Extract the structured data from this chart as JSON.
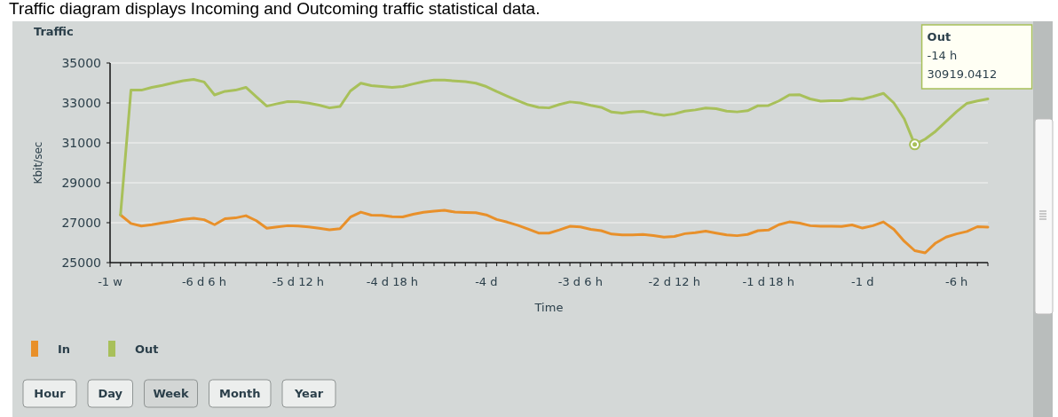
{
  "chart_data": {
    "type": "line",
    "title": "Traffic",
    "xlabel": "Time",
    "ylabel": "Kbit/sec",
    "annotations": [
      "Traffic diagram displays Incoming and Outcoming traffic statistical data.",
      "Out\n-14 h\n30919.0412",
      "Hour",
      "Day",
      "Week",
      "Month",
      "Year"
    ],
    "categories": [
      "-1 w",
      null,
      null,
      null,
      null,
      null,
      null,
      null,
      null,
      "-6 d 6 h",
      null,
      null,
      null,
      null,
      null,
      null,
      null,
      null,
      "-5 d 12 h",
      null,
      null,
      null,
      null,
      null,
      null,
      null,
      null,
      "-4 d 18 h",
      null,
      null,
      null,
      null,
      null,
      null,
      null,
      null,
      "-4 d",
      null,
      null,
      null,
      null,
      null,
      null,
      null,
      null,
      "-3 d 6 h",
      null,
      null,
      null,
      null,
      null,
      null,
      null,
      null,
      "-2 d 12 h",
      null,
      null,
      null,
      null,
      null,
      null,
      null,
      null,
      "-1 d 18 h",
      null,
      null,
      null,
      null,
      null,
      null,
      null,
      null,
      "-1 d",
      null,
      null,
      null,
      null,
      null,
      null,
      null,
      null,
      "-6 h",
      null,
      null,
      null
    ],
    "ylim": [
      25000,
      35000
    ],
    "yticks": [
      25000,
      27000,
      29000,
      31000,
      33000,
      35000
    ],
    "grid": "y",
    "legend": "bottom left",
    "marker": "none",
    "line_style": "solid",
    "series": [
      {
        "name": "In",
        "color": "#e8902a",
        "values": [
          null,
          27390,
          26960,
          26830,
          26900,
          26990,
          27070,
          27170,
          27220,
          27150,
          26900,
          27200,
          27240,
          27350,
          27100,
          26720,
          26790,
          26850,
          26830,
          26790,
          26720,
          26640,
          26700,
          27280,
          27530,
          27380,
          27370,
          27300,
          27290,
          27420,
          27520,
          27580,
          27620,
          27530,
          27510,
          27500,
          27390,
          27160,
          27030,
          26870,
          26680,
          26480,
          26480,
          26640,
          26820,
          26790,
          26670,
          26600,
          26430,
          26390,
          26390,
          26410,
          26360,
          26280,
          26310,
          26450,
          26500,
          26580,
          26480,
          26390,
          26350,
          26410,
          26600,
          26630,
          26900,
          27040,
          26980,
          26850,
          26820,
          26820,
          26810,
          26890,
          26730,
          26850,
          27040,
          26670,
          26070,
          25600,
          25490,
          25980,
          26280,
          26440,
          26560,
          26800,
          26780
        ]
      },
      {
        "name": "Out",
        "color": "#a8c05a",
        "values": [
          null,
          27390,
          33640,
          33640,
          33780,
          33880,
          34000,
          34110,
          34180,
          34050,
          33400,
          33580,
          33640,
          33780,
          33310,
          32840,
          32960,
          33070,
          33060,
          32990,
          32890,
          32750,
          32820,
          33600,
          33990,
          33870,
          33820,
          33780,
          33820,
          33950,
          34070,
          34150,
          34140,
          34100,
          34070,
          33990,
          33820,
          33570,
          33340,
          33120,
          32910,
          32780,
          32750,
          32920,
          33050,
          33000,
          32880,
          32780,
          32540,
          32490,
          32560,
          32580,
          32460,
          32380,
          32450,
          32590,
          32650,
          32740,
          32710,
          32590,
          32550,
          32610,
          32860,
          32870,
          33100,
          33400,
          33410,
          33200,
          33090,
          33110,
          33110,
          33220,
          33190,
          33320,
          33480,
          33000,
          32200,
          30919.0412,
          31190,
          31580,
          32070,
          32560,
          32980,
          33100,
          33200
        ]
      }
    ]
  }
}
